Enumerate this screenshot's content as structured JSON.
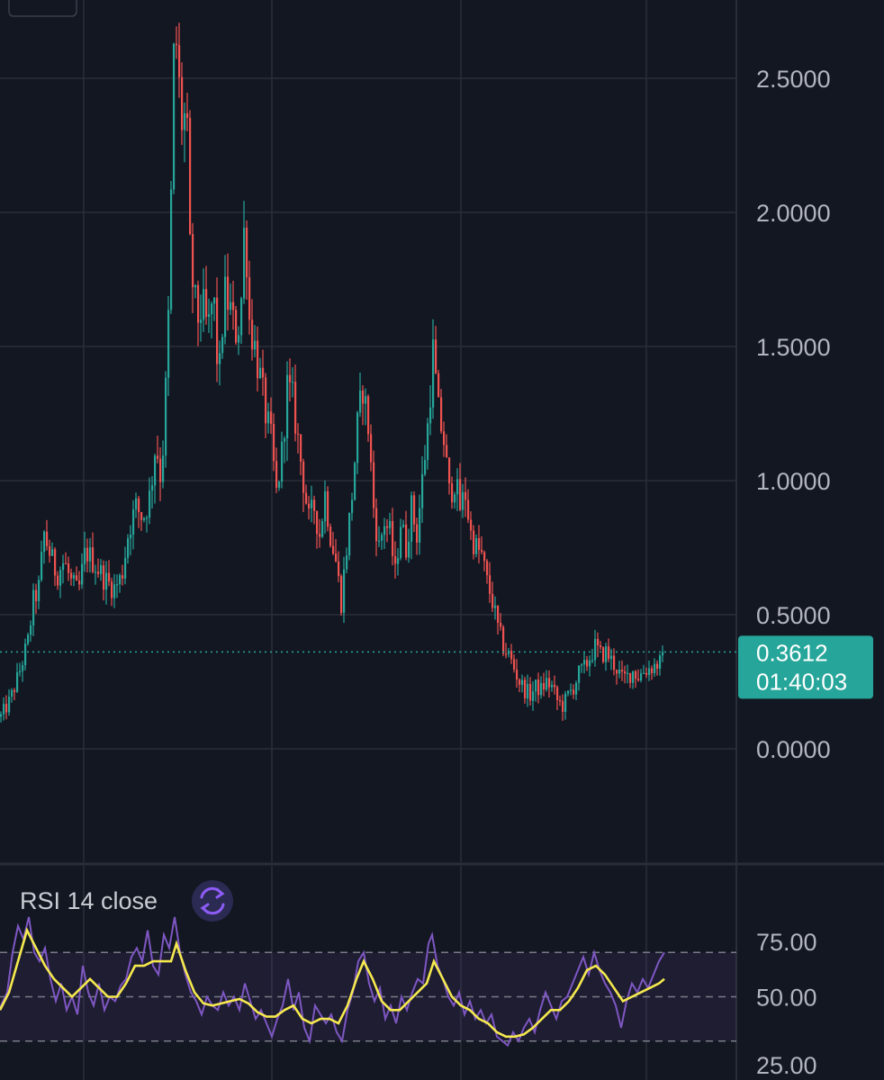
{
  "colors": {
    "background": "#131722",
    "grid": "#2a2e39",
    "up": "#26a69a",
    "down": "#ef5350",
    "price_tag_bg": "#26a69a",
    "rsi_line": "#7e57c2",
    "rsi_ma": "#f5e94f",
    "rsi_band": "#7e57c2",
    "axis_text": "#b2b5be",
    "rsi_icon_bg": "#2b2a52",
    "rsi_icon": "#8d5cf6"
  },
  "chart_data": [
    {
      "type": "candlestick",
      "title": "",
      "ylim": [
        -0.25,
        2.78
      ],
      "yticks": [
        0.0,
        0.5,
        1.0,
        1.5,
        2.0,
        2.5
      ],
      "ytick_labels": [
        "0.0000",
        "0.5000",
        "1.0000",
        "1.5000",
        "2.0000",
        "2.5000"
      ],
      "last_price": 0.3612,
      "last_price_label": "0.3612",
      "countdown_label": "01:40:03",
      "price_path": [
        [
          0,
          0.12
        ],
        [
          10,
          0.18
        ],
        [
          20,
          0.28
        ],
        [
          30,
          0.4
        ],
        [
          36,
          0.55
        ],
        [
          42,
          0.6
        ],
        [
          48,
          0.8
        ],
        [
          55,
          0.72
        ],
        [
          62,
          0.65
        ],
        [
          70,
          0.7
        ],
        [
          78,
          0.62
        ],
        [
          86,
          0.58
        ],
        [
          94,
          0.74
        ],
        [
          102,
          0.7
        ],
        [
          110,
          0.66
        ],
        [
          118,
          0.62
        ],
        [
          126,
          0.6
        ],
        [
          134,
          0.64
        ],
        [
          142,
          0.82
        ],
        [
          150,
          0.9
        ],
        [
          158,
          0.86
        ],
        [
          166,
          0.95
        ],
        [
          172,
          1.15
        ],
        [
          178,
          1.0
        ],
        [
          182,
          1.25
        ],
        [
          186,
          1.6
        ],
        [
          190,
          2.2
        ],
        [
          193,
          2.75
        ],
        [
          197,
          2.5
        ],
        [
          202,
          2.3
        ],
        [
          206,
          2.4
        ],
        [
          210,
          1.85
        ],
        [
          214,
          1.7
        ],
        [
          218,
          1.6
        ],
        [
          224,
          1.65
        ],
        [
          230,
          1.55
        ],
        [
          236,
          1.7
        ],
        [
          242,
          1.35
        ],
        [
          248,
          1.7
        ],
        [
          254,
          1.65
        ],
        [
          260,
          1.55
        ],
        [
          266,
          1.6
        ],
        [
          271,
          2.0
        ],
        [
          276,
          1.6
        ],
        [
          282,
          1.5
        ],
        [
          288,
          1.38
        ],
        [
          294,
          1.25
        ],
        [
          300,
          1.15
        ],
        [
          306,
          0.95
        ],
        [
          312,
          1.1
        ],
        [
          318,
          1.35
        ],
        [
          324,
          1.3
        ],
        [
          330,
          1.15
        ],
        [
          336,
          1.0
        ],
        [
          342,
          0.85
        ],
        [
          348,
          0.9
        ],
        [
          354,
          0.8
        ],
        [
          360,
          0.95
        ],
        [
          366,
          0.8
        ],
        [
          372,
          0.7
        ],
        [
          378,
          0.55
        ],
        [
          384,
          0.75
        ],
        [
          390,
          0.95
        ],
        [
          396,
          1.2
        ],
        [
          402,
          1.35
        ],
        [
          408,
          1.2
        ],
        [
          414,
          0.9
        ],
        [
          420,
          0.75
        ],
        [
          426,
          0.85
        ],
        [
          432,
          0.8
        ],
        [
          438,
          0.65
        ],
        [
          444,
          0.85
        ],
        [
          450,
          0.75
        ],
        [
          456,
          0.9
        ],
        [
          462,
          0.8
        ],
        [
          468,
          1.0
        ],
        [
          474,
          1.2
        ],
        [
          480,
          1.48
        ],
        [
          486,
          1.25
        ],
        [
          492,
          1.15
        ],
        [
          498,
          0.95
        ],
        [
          504,
          1.0
        ],
        [
          510,
          0.9
        ],
        [
          516,
          0.95
        ],
        [
          522,
          0.8
        ],
        [
          528,
          0.75
        ],
        [
          534,
          0.72
        ],
        [
          540,
          0.62
        ],
        [
          546,
          0.55
        ],
        [
          552,
          0.45
        ],
        [
          558,
          0.38
        ],
        [
          564,
          0.35
        ],
        [
          570,
          0.3
        ],
        [
          576,
          0.25
        ],
        [
          582,
          0.22
        ],
        [
          588,
          0.2
        ],
        [
          594,
          0.23
        ],
        [
          600,
          0.22
        ],
        [
          606,
          0.25
        ],
        [
          612,
          0.23
        ],
        [
          618,
          0.18
        ],
        [
          624,
          0.16
        ],
        [
          630,
          0.2
        ],
        [
          636,
          0.23
        ],
        [
          642,
          0.28
        ],
        [
          648,
          0.3
        ],
        [
          654,
          0.34
        ],
        [
          660,
          0.38
        ],
        [
          666,
          0.35
        ],
        [
          672,
          0.36
        ],
        [
          678,
          0.33
        ],
        [
          684,
          0.3
        ],
        [
          690,
          0.26
        ],
        [
          696,
          0.27
        ],
        [
          702,
          0.29
        ],
        [
          708,
          0.27
        ],
        [
          714,
          0.29
        ],
        [
          720,
          0.3
        ],
        [
          726,
          0.31
        ],
        [
          732,
          0.32
        ],
        [
          736,
          0.3612
        ]
      ]
    },
    {
      "type": "line",
      "title": "RSI 14 close",
      "ylim": [
        22,
        92
      ],
      "yticks": [
        25,
        50,
        75
      ],
      "ytick_labels": [
        "25.00",
        "50.00",
        "75.00"
      ],
      "band": {
        "upper": 70,
        "middle": 50,
        "lower": 30
      },
      "rsi_path": [
        [
          0,
          45
        ],
        [
          8,
          52
        ],
        [
          14,
          70
        ],
        [
          20,
          82
        ],
        [
          26,
          76
        ],
        [
          32,
          86
        ],
        [
          38,
          70
        ],
        [
          44,
          66
        ],
        [
          50,
          72
        ],
        [
          56,
          58
        ],
        [
          62,
          48
        ],
        [
          68,
          56
        ],
        [
          74,
          44
        ],
        [
          80,
          50
        ],
        [
          86,
          42
        ],
        [
          92,
          64
        ],
        [
          98,
          52
        ],
        [
          104,
          46
        ],
        [
          110,
          56
        ],
        [
          116,
          44
        ],
        [
          122,
          50
        ],
        [
          128,
          48
        ],
        [
          134,
          55
        ],
        [
          140,
          58
        ],
        [
          146,
          68
        ],
        [
          152,
          72
        ],
        [
          158,
          66
        ],
        [
          164,
          80
        ],
        [
          170,
          64
        ],
        [
          176,
          60
        ],
        [
          182,
          78
        ],
        [
          188,
          72
        ],
        [
          194,
          86
        ],
        [
          200,
          70
        ],
        [
          206,
          60
        ],
        [
          212,
          52
        ],
        [
          218,
          48
        ],
        [
          224,
          42
        ],
        [
          230,
          50
        ],
        [
          236,
          46
        ],
        [
          242,
          44
        ],
        [
          248,
          52
        ],
        [
          254,
          46
        ],
        [
          260,
          50
        ],
        [
          266,
          44
        ],
        [
          272,
          56
        ],
        [
          278,
          48
        ],
        [
          284,
          40
        ],
        [
          290,
          44
        ],
        [
          296,
          38
        ],
        [
          302,
          32
        ],
        [
          308,
          40
        ],
        [
          314,
          46
        ],
        [
          320,
          58
        ],
        [
          326,
          44
        ],
        [
          332,
          52
        ],
        [
          338,
          36
        ],
        [
          344,
          30
        ],
        [
          350,
          46
        ],
        [
          356,
          42
        ],
        [
          362,
          38
        ],
        [
          368,
          42
        ],
        [
          374,
          34
        ],
        [
          380,
          30
        ],
        [
          386,
          44
        ],
        [
          392,
          52
        ],
        [
          398,
          66
        ],
        [
          404,
          70
        ],
        [
          410,
          56
        ],
        [
          416,
          48
        ],
        [
          422,
          54
        ],
        [
          428,
          40
        ],
        [
          434,
          46
        ],
        [
          440,
          38
        ],
        [
          446,
          50
        ],
        [
          452,
          44
        ],
        [
          458,
          52
        ],
        [
          464,
          58
        ],
        [
          470,
          56
        ],
        [
          476,
          74
        ],
        [
          480,
          78
        ],
        [
          486,
          64
        ],
        [
          492,
          58
        ],
        [
          498,
          50
        ],
        [
          504,
          46
        ],
        [
          510,
          52
        ],
        [
          516,
          42
        ],
        [
          522,
          48
        ],
        [
          528,
          40
        ],
        [
          534,
          44
        ],
        [
          540,
          38
        ],
        [
          546,
          42
        ],
        [
          552,
          32
        ],
        [
          558,
          30
        ],
        [
          564,
          28
        ],
        [
          570,
          34
        ],
        [
          576,
          30
        ],
        [
          582,
          36
        ],
        [
          588,
          40
        ],
        [
          594,
          34
        ],
        [
          600,
          44
        ],
        [
          606,
          52
        ],
        [
          612,
          46
        ],
        [
          618,
          40
        ],
        [
          624,
          48
        ],
        [
          630,
          50
        ],
        [
          636,
          56
        ],
        [
          642,
          62
        ],
        [
          648,
          68
        ],
        [
          654,
          60
        ],
        [
          660,
          70
        ],
        [
          666,
          62
        ],
        [
          672,
          56
        ],
        [
          678,
          52
        ],
        [
          684,
          46
        ],
        [
          690,
          36
        ],
        [
          696,
          48
        ],
        [
          702,
          56
        ],
        [
          708,
          52
        ],
        [
          714,
          58
        ],
        [
          720,
          54
        ],
        [
          726,
          60
        ],
        [
          732,
          66
        ],
        [
          738,
          70
        ]
      ],
      "rsi_ma_path": [
        [
          0,
          44
        ],
        [
          10,
          52
        ],
        [
          20,
          66
        ],
        [
          30,
          80
        ],
        [
          40,
          72
        ],
        [
          50,
          64
        ],
        [
          60,
          58
        ],
        [
          70,
          54
        ],
        [
          80,
          50
        ],
        [
          90,
          54
        ],
        [
          100,
          58
        ],
        [
          110,
          54
        ],
        [
          120,
          50
        ],
        [
          130,
          50
        ],
        [
          140,
          56
        ],
        [
          150,
          64
        ],
        [
          160,
          64
        ],
        [
          170,
          66
        ],
        [
          180,
          66
        ],
        [
          190,
          66
        ],
        [
          196,
          74
        ],
        [
          206,
          62
        ],
        [
          216,
          52
        ],
        [
          226,
          47
        ],
        [
          236,
          46
        ],
        [
          246,
          47
        ],
        [
          256,
          48
        ],
        [
          266,
          49
        ],
        [
          276,
          47
        ],
        [
          286,
          43
        ],
        [
          296,
          41
        ],
        [
          306,
          41
        ],
        [
          316,
          44
        ],
        [
          326,
          46
        ],
        [
          336,
          40
        ],
        [
          346,
          38
        ],
        [
          356,
          40
        ],
        [
          366,
          40
        ],
        [
          376,
          38
        ],
        [
          386,
          46
        ],
        [
          396,
          58
        ],
        [
          404,
          66
        ],
        [
          414,
          58
        ],
        [
          424,
          48
        ],
        [
          434,
          44
        ],
        [
          444,
          44
        ],
        [
          454,
          48
        ],
        [
          464,
          52
        ],
        [
          474,
          56
        ],
        [
          482,
          66
        ],
        [
          492,
          58
        ],
        [
          502,
          50
        ],
        [
          512,
          46
        ],
        [
          522,
          44
        ],
        [
          532,
          40
        ],
        [
          542,
          38
        ],
        [
          552,
          34
        ],
        [
          562,
          32
        ],
        [
          572,
          32
        ],
        [
          582,
          33
        ],
        [
          592,
          36
        ],
        [
          602,
          40
        ],
        [
          612,
          44
        ],
        [
          622,
          44
        ],
        [
          632,
          48
        ],
        [
          642,
          54
        ],
        [
          652,
          62
        ],
        [
          662,
          64
        ],
        [
          672,
          60
        ],
        [
          682,
          54
        ],
        [
          692,
          48
        ],
        [
          702,
          50
        ],
        [
          712,
          52
        ],
        [
          722,
          54
        ],
        [
          732,
          56
        ],
        [
          738,
          58
        ]
      ]
    }
  ],
  "rsi_panel": {
    "title": "RSI 14 close",
    "icon": "refresh-icon"
  }
}
